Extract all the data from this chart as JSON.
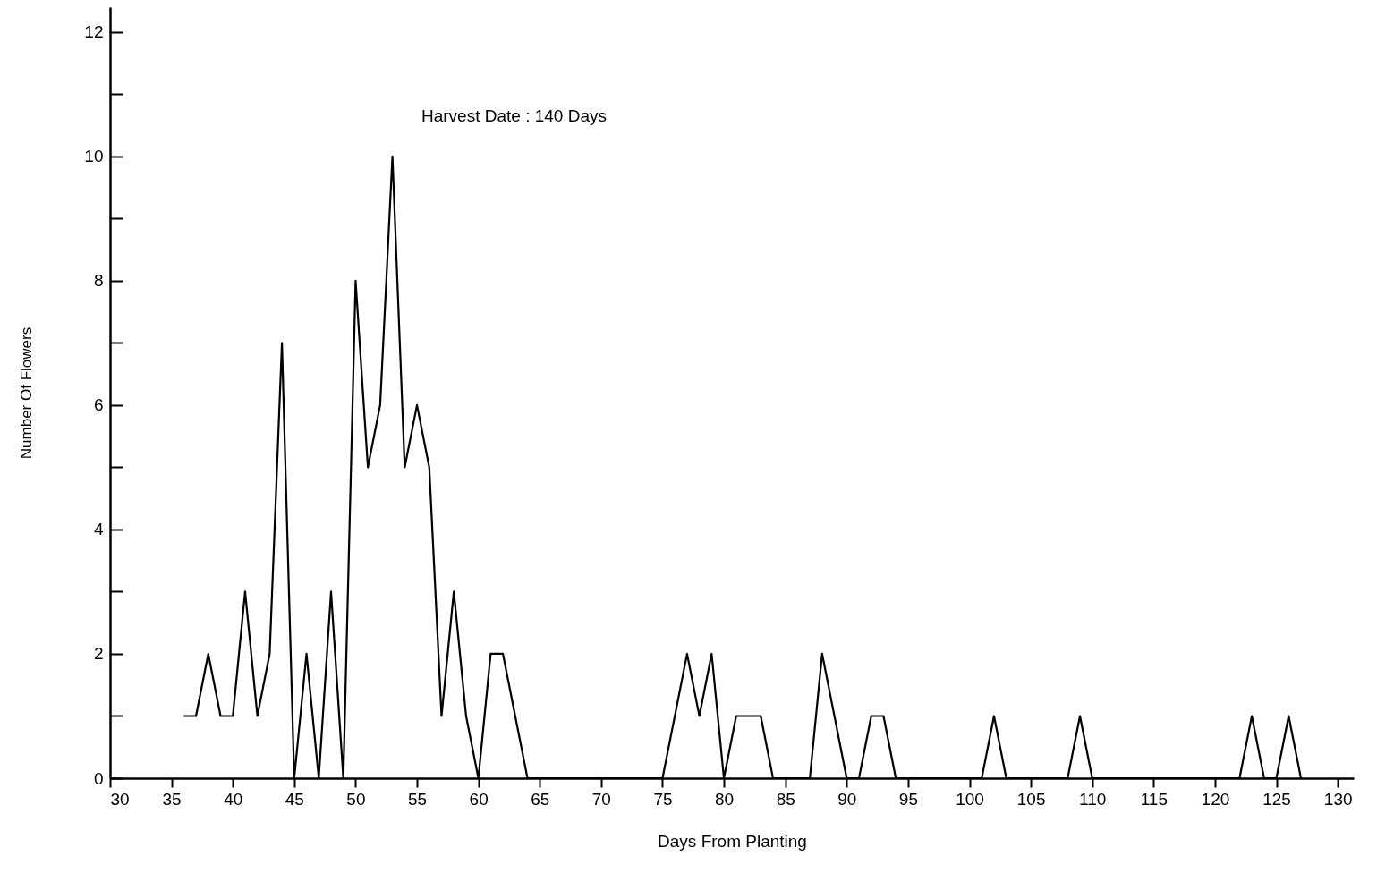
{
  "chart_data": {
    "type": "line",
    "xlabel": "Days From Planting",
    "ylabel": "Number Of Flowers",
    "annotations": [
      "Harvest Date : 140 Days"
    ],
    "x": [
      36,
      37,
      38,
      39,
      40,
      41,
      42,
      43,
      44,
      45,
      46,
      47,
      48,
      49,
      50,
      51,
      52,
      53,
      54,
      55,
      56,
      57,
      58,
      59,
      60,
      61,
      62,
      63,
      64,
      75,
      76,
      77,
      78,
      79,
      80,
      81,
      82,
      83,
      84,
      87,
      88,
      89,
      90,
      91,
      92,
      93,
      94,
      101,
      102,
      103,
      108,
      109,
      110,
      122,
      123,
      124,
      125,
      126,
      127
    ],
    "series": [
      {
        "color": "#000000",
        "values": [
          1,
          1,
          2,
          1,
          1,
          3,
          1,
          2,
          7,
          0,
          2,
          0,
          3,
          0,
          8,
          5,
          6,
          10,
          5,
          6,
          5,
          1,
          3,
          1,
          0,
          2,
          2,
          1,
          0,
          0,
          1,
          2,
          1,
          2,
          0,
          1,
          1,
          1,
          0,
          0,
          2,
          1,
          0,
          0,
          1,
          1,
          0,
          0,
          1,
          0,
          0,
          1,
          0,
          0,
          1,
          0,
          0,
          1,
          0
        ]
      }
    ],
    "xlim": [
      30,
      131.3
    ],
    "ylim": [
      0,
      12.4
    ],
    "xticks": [
      30,
      35,
      40,
      45,
      50,
      55,
      60,
      65,
      70,
      75,
      80,
      85,
      90,
      95,
      100,
      105,
      110,
      115,
      120,
      125,
      130
    ],
    "yticks": [
      0,
      {
        "value": 1,
        "label": null
      },
      2,
      {
        "value": 3,
        "label": null
      },
      4,
      {
        "value": 5,
        "label": null
      },
      6,
      {
        "value": 7,
        "label": null
      },
      8,
      {
        "value": 9,
        "label": null
      },
      10,
      {
        "value": 11,
        "label": null
      },
      12
    ],
    "grid": false,
    "marker": "none",
    "line_style": "solid"
  }
}
